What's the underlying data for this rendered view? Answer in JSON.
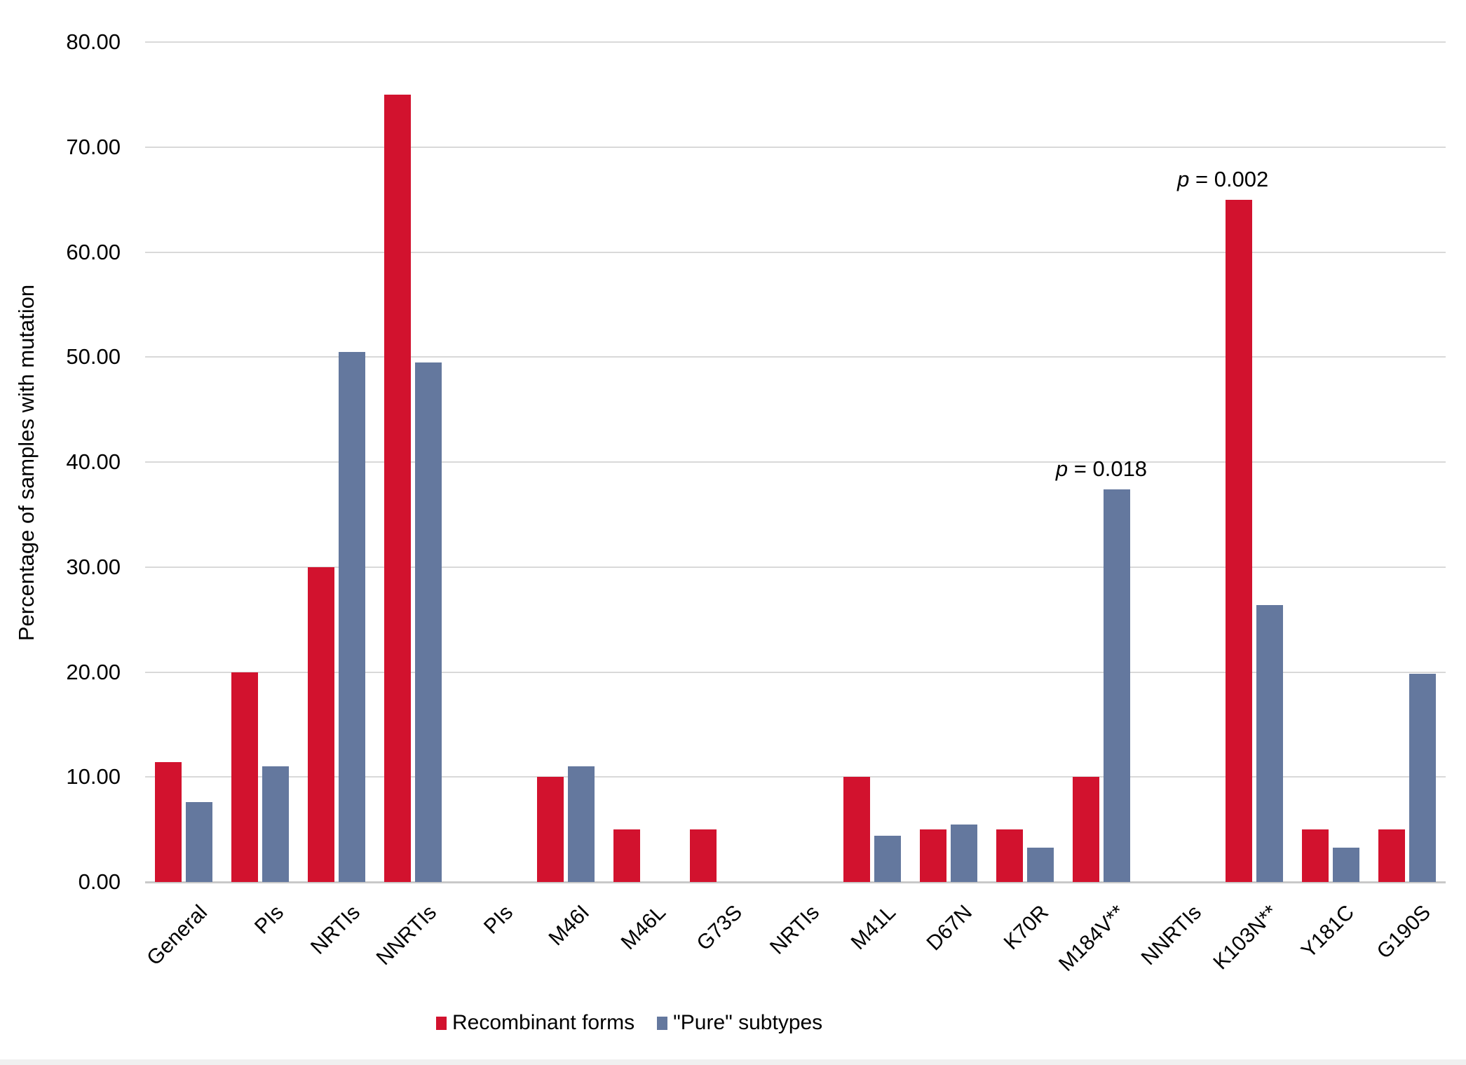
{
  "chart_data": {
    "type": "bar",
    "title": "",
    "ylabel": "Percentage of samples with mutation",
    "xlabel": "",
    "ylim": [
      0,
      80
    ],
    "ytick_step": 10,
    "ytick_labels": [
      "0.00",
      "10.00",
      "20.00",
      "30.00",
      "40.00",
      "50.00",
      "60.00",
      "70.00",
      "80.00"
    ],
    "grid": true,
    "legend_position": "bottom",
    "categories": [
      "General",
      "PIs",
      "NRTIs",
      "NNRTIs",
      "PIs",
      "M46I",
      "M46L",
      "G73S",
      "NRTIs",
      "M41L",
      "D67N",
      "K70R",
      "M184V**",
      "NNRTIs",
      "K103N**",
      "Y181C",
      "G190S"
    ],
    "series": [
      {
        "name": "Recombinant forms",
        "color": "#d2122e",
        "values": [
          11.4,
          20.0,
          30.0,
          75.0,
          0,
          10.0,
          5.0,
          5.0,
          0,
          10.0,
          5.0,
          5.0,
          10.0,
          0,
          65.0,
          5.0,
          5.0
        ]
      },
      {
        "name": "\"Pure\" subtypes",
        "color": "#64789e",
        "values": [
          7.6,
          11.0,
          50.5,
          49.5,
          0,
          11.0,
          0,
          0,
          0,
          4.4,
          5.5,
          3.3,
          37.4,
          0,
          26.4,
          3.3,
          19.8
        ]
      }
    ],
    "annotations": [
      {
        "italic": "p",
        "rest": " = 0.018",
        "category": "M184V**",
        "series_index": 1,
        "dx": 0
      },
      {
        "italic": "p",
        "rest": " = 0.002",
        "category": "K103N**",
        "series_index": 0,
        "dx": -45
      }
    ]
  }
}
